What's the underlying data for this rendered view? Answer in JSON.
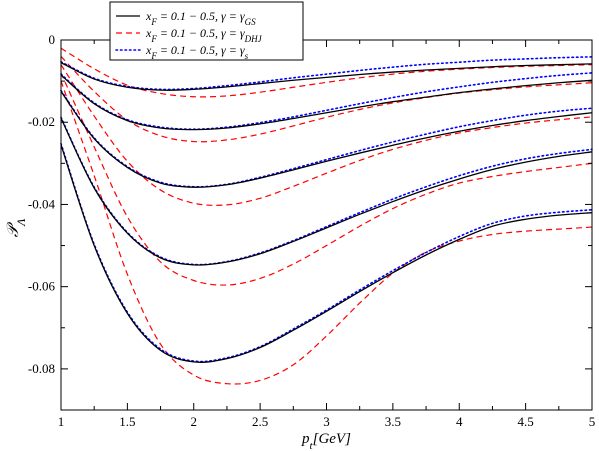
{
  "chart_data": {
    "type": "line",
    "xlabel": "p_t[GeV]",
    "ylabel": "𝒫_Λ",
    "xlim": [
      1,
      5
    ],
    "ylim": [
      -0.09,
      0
    ],
    "x_ticks": [
      "1",
      "1.5",
      "2",
      "2.5",
      "3",
      "3.5",
      "4",
      "4.5",
      "5"
    ],
    "y_ticks": [
      "0",
      "-0.02",
      "-0.04",
      "-0.06",
      "-0.08"
    ],
    "grid": false,
    "legend_position": "top-left",
    "legend": [
      {
        "text": "x_F = 0.1 − 0.5,  γ = γ_GS",
        "style": "solid",
        "color": "#000000"
      },
      {
        "text": "x_F = 0.1 − 0.5,  γ = γ_DHJ",
        "style": "dashed",
        "color": "#ff0000"
      },
      {
        "text": "x_F = 0.1 − 0.5,  γ = γ_s",
        "style": "dotted",
        "color": "#0000ff"
      }
    ],
    "x": [
      1.0,
      1.25,
      1.5,
      1.75,
      2.0,
      2.25,
      2.5,
      2.75,
      3.0,
      3.25,
      3.5,
      3.75,
      4.0,
      4.25,
      4.5,
      4.75,
      5.0
    ],
    "series": [
      {
        "group": "gs",
        "values": [
          -0.0055,
          -0.0095,
          -0.0115,
          -0.0122,
          -0.012,
          -0.0114,
          -0.0106,
          -0.0098,
          -0.0091,
          -0.0084,
          -0.0078,
          -0.0073,
          -0.0069,
          -0.0065,
          -0.0062,
          -0.006,
          -0.0058
        ]
      },
      {
        "group": "gs",
        "values": [
          -0.0085,
          -0.0155,
          -0.0196,
          -0.0214,
          -0.0218,
          -0.0214,
          -0.0204,
          -0.0191,
          -0.0177,
          -0.0163,
          -0.015,
          -0.0139,
          -0.0128,
          -0.0119,
          -0.0111,
          -0.0104,
          -0.0098
        ]
      },
      {
        "group": "gs",
        "values": [
          -0.0125,
          -0.024,
          -0.031,
          -0.0348,
          -0.0358,
          -0.0352,
          -0.0336,
          -0.0316,
          -0.0295,
          -0.0275,
          -0.0256,
          -0.0238,
          -0.0222,
          -0.0208,
          -0.0196,
          -0.0186,
          -0.0177
        ]
      },
      {
        "group": "gs",
        "values": [
          -0.019,
          -0.036,
          -0.047,
          -0.053,
          -0.0547,
          -0.054,
          -0.052,
          -0.049,
          -0.0457,
          -0.0424,
          -0.0393,
          -0.0364,
          -0.0338,
          -0.0315,
          -0.0297,
          -0.0283,
          -0.0272
        ]
      },
      {
        "group": "gs",
        "values": [
          -0.0255,
          -0.05,
          -0.0665,
          -0.0755,
          -0.0783,
          -0.0775,
          -0.0748,
          -0.0706,
          -0.066,
          -0.0612,
          -0.0566,
          -0.0523,
          -0.0485,
          -0.0453,
          -0.0436,
          -0.0426,
          -0.042
        ]
      },
      {
        "group": "dhj",
        "values": [
          -0.002,
          -0.007,
          -0.011,
          -0.013,
          -0.0138,
          -0.0136,
          -0.0127,
          -0.0115,
          -0.0103,
          -0.0092,
          -0.0083,
          -0.0076,
          -0.0071,
          -0.0067,
          -0.0064,
          -0.0062,
          -0.006
        ]
      },
      {
        "group": "dhj",
        "values": [
          -0.004,
          -0.0125,
          -0.0195,
          -0.0233,
          -0.0247,
          -0.0243,
          -0.0229,
          -0.0209,
          -0.0188,
          -0.0169,
          -0.0153,
          -0.014,
          -0.0129,
          -0.0121,
          -0.0114,
          -0.0109,
          -0.0104
        ]
      },
      {
        "group": "dhj",
        "values": [
          -0.006,
          -0.0185,
          -0.0295,
          -0.0365,
          -0.0397,
          -0.0401,
          -0.0385,
          -0.0356,
          -0.0324,
          -0.0293,
          -0.0266,
          -0.0244,
          -0.0226,
          -0.0213,
          -0.0202,
          -0.0194,
          -0.0187
        ]
      },
      {
        "group": "dhj",
        "values": [
          -0.008,
          -0.026,
          -0.043,
          -0.054,
          -0.0585,
          -0.0596,
          -0.058,
          -0.0545,
          -0.05,
          -0.0453,
          -0.041,
          -0.0375,
          -0.0348,
          -0.0332,
          -0.032,
          -0.031,
          -0.03
        ]
      },
      {
        "group": "dhj",
        "values": [
          -0.01,
          -0.033,
          -0.057,
          -0.074,
          -0.0815,
          -0.0836,
          -0.0828,
          -0.079,
          -0.072,
          -0.064,
          -0.0567,
          -0.0516,
          -0.0489,
          -0.0473,
          -0.0465,
          -0.046,
          -0.0455
        ]
      },
      {
        "group": "s",
        "values": [
          -0.0053,
          -0.0093,
          -0.0113,
          -0.012,
          -0.0118,
          -0.0111,
          -0.0102,
          -0.0092,
          -0.0083,
          -0.0074,
          -0.0066,
          -0.0059,
          -0.0054,
          -0.0049,
          -0.0046,
          -0.0043,
          -0.0041
        ]
      },
      {
        "group": "s",
        "values": [
          -0.0083,
          -0.0153,
          -0.0194,
          -0.0212,
          -0.0217,
          -0.0212,
          -0.0201,
          -0.0187,
          -0.0171,
          -0.0155,
          -0.014,
          -0.0126,
          -0.0114,
          -0.0103,
          -0.0094,
          -0.0086,
          -0.008
        ]
      },
      {
        "group": "s",
        "values": [
          -0.0123,
          -0.0238,
          -0.0308,
          -0.0346,
          -0.0357,
          -0.0351,
          -0.0334,
          -0.0313,
          -0.0291,
          -0.0269,
          -0.0248,
          -0.0229,
          -0.0211,
          -0.0196,
          -0.0183,
          -0.0173,
          -0.0166
        ]
      },
      {
        "group": "s",
        "values": [
          -0.0188,
          -0.0358,
          -0.0468,
          -0.0528,
          -0.0546,
          -0.0539,
          -0.0518,
          -0.0488,
          -0.0454,
          -0.042,
          -0.0387,
          -0.0357,
          -0.033,
          -0.0307,
          -0.0289,
          -0.0276,
          -0.0266
        ]
      },
      {
        "group": "s",
        "values": [
          -0.0252,
          -0.0497,
          -0.0662,
          -0.0752,
          -0.0781,
          -0.0773,
          -0.0746,
          -0.0703,
          -0.0657,
          -0.0608,
          -0.0561,
          -0.0517,
          -0.0478,
          -0.0446,
          -0.0428,
          -0.0419,
          -0.0413
        ]
      }
    ]
  }
}
